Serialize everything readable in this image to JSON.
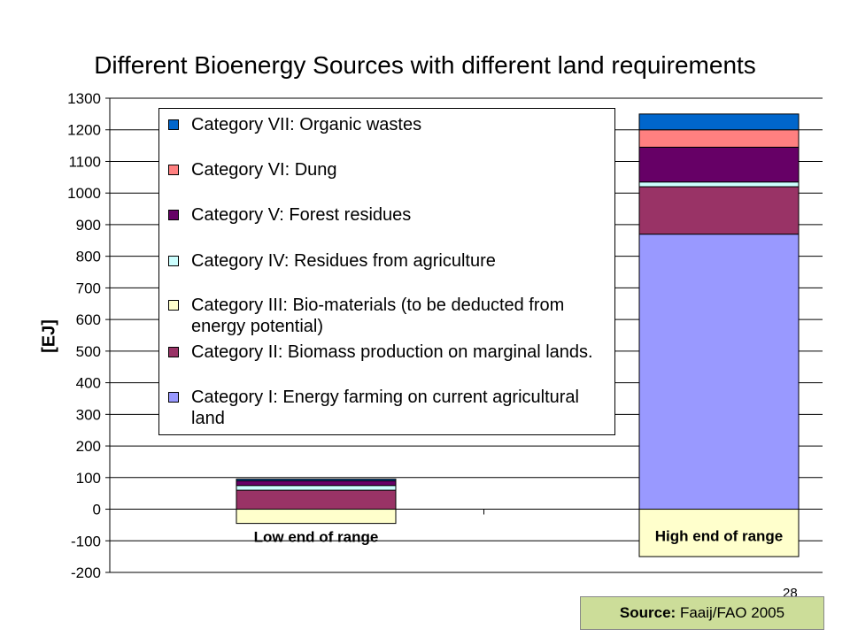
{
  "slide": {
    "title": "Different Bioenergy Sources with different land requirements",
    "page_number": "28",
    "source_label": "Source:",
    "source_text": "Faaij/FAO 2005"
  },
  "chart_data": {
    "type": "bar",
    "stacked": true,
    "title": "Different Bioenergy Sources with different land requirements",
    "ylabel": "[EJ]",
    "xlabel": "",
    "ylim": [
      -200,
      1300
    ],
    "yticks": [
      1300,
      1200,
      1100,
      1000,
      900,
      800,
      700,
      600,
      500,
      400,
      300,
      200,
      100,
      0,
      -100,
      -200
    ],
    "grid": true,
    "legend_position": "top-left",
    "categories": [
      "Low end of range",
      "High end of range"
    ],
    "series": [
      {
        "name": "Category I: Energy farming on current agricultural land",
        "color": "#9999ff",
        "values": [
          0,
          870
        ]
      },
      {
        "name": "Category II: Biomass production on marginal lands.",
        "color": "#993366",
        "values": [
          60,
          150
        ]
      },
      {
        "name": "Category III: Bio-materials (to be deducted from energy potential)",
        "color": "#ffffcc",
        "values": [
          -45,
          -150
        ]
      },
      {
        "name": "Category IV: Residues from agriculture",
        "color": "#ccffff",
        "values": [
          15,
          15
        ]
      },
      {
        "name": "Category V: Forest residues",
        "color": "#660066",
        "values": [
          15,
          110
        ]
      },
      {
        "name": "Category VI: Dung",
        "color": "#ff8080",
        "values": [
          0,
          55
        ]
      },
      {
        "name": "Category VII: Organic wastes",
        "color": "#0066cc",
        "values": [
          5,
          50
        ]
      }
    ],
    "legend_order": [
      6,
      5,
      4,
      3,
      2,
      1,
      0
    ]
  }
}
